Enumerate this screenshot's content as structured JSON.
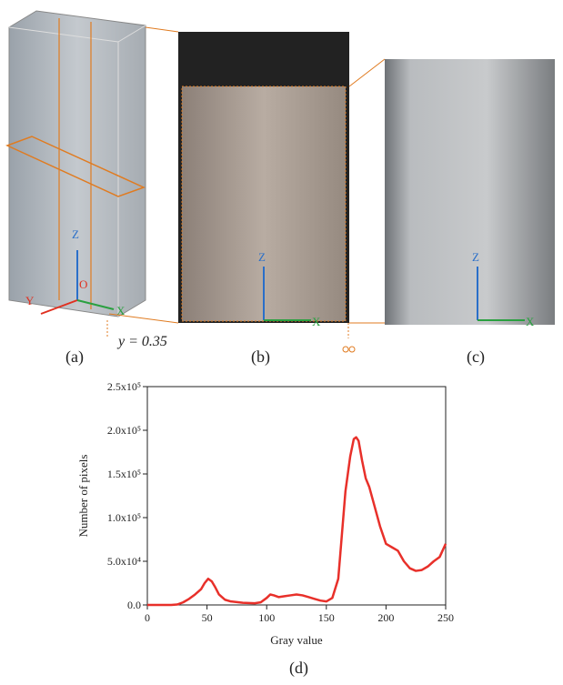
{
  "panels": [
    {
      "label": "(a)",
      "axes": [
        "Z",
        "O",
        "Y",
        "X"
      ],
      "annotation": "y = 0.35"
    },
    {
      "label": "(b)",
      "axes": [
        "Z",
        "X"
      ]
    },
    {
      "label": "(c)",
      "axes": [
        "Z",
        "X"
      ]
    }
  ],
  "chart_data": {
    "type": "line",
    "label": "(d)",
    "x_label": "Gray value",
    "y_label": "Number of pixels",
    "x": [
      0,
      10,
      20,
      25,
      30,
      35,
      40,
      45,
      48,
      51,
      54,
      57,
      60,
      65,
      70,
      80,
      90,
      95,
      100,
      103,
      106,
      110,
      115,
      120,
      125,
      130,
      135,
      140,
      145,
      150,
      155,
      160,
      163,
      166,
      170,
      173,
      175,
      177,
      180,
      183,
      186,
      190,
      195,
      200,
      205,
      210,
      215,
      220,
      225,
      230,
      235,
      240,
      245,
      250
    ],
    "series": [
      {
        "color": "#e8302a",
        "values": [
          0,
          0,
          0,
          500,
          3000,
          7000,
          12000,
          18000,
          25000,
          30000,
          27000,
          20000,
          12000,
          6000,
          4000,
          2500,
          2000,
          3000,
          8000,
          12000,
          11000,
          9000,
          10000,
          11000,
          12000,
          11000,
          9000,
          7000,
          5000,
          4000,
          8000,
          30000,
          80000,
          130000,
          170000,
          190000,
          192000,
          188000,
          165000,
          145000,
          135000,
          115000,
          90000,
          70000,
          66000,
          62000,
          50000,
          42000,
          39000,
          40000,
          44000,
          50000,
          55000,
          70000
        ]
      }
    ],
    "xlim": [
      0,
      250
    ],
    "xticks": [
      0,
      50,
      100,
      150,
      200,
      250
    ],
    "ylim": [
      0,
      250000
    ],
    "yticks": [
      {
        "value": 0,
        "label": "0.0"
      },
      {
        "value": 50000,
        "label": "5.0x10⁴"
      },
      {
        "value": 100000,
        "label": "1.0x10⁵"
      },
      {
        "value": 150000,
        "label": "1.5x10⁵"
      },
      {
        "value": 200000,
        "label": "2.0x10⁵"
      },
      {
        "value": 250000,
        "label": "2.5x10⁵"
      }
    ]
  }
}
